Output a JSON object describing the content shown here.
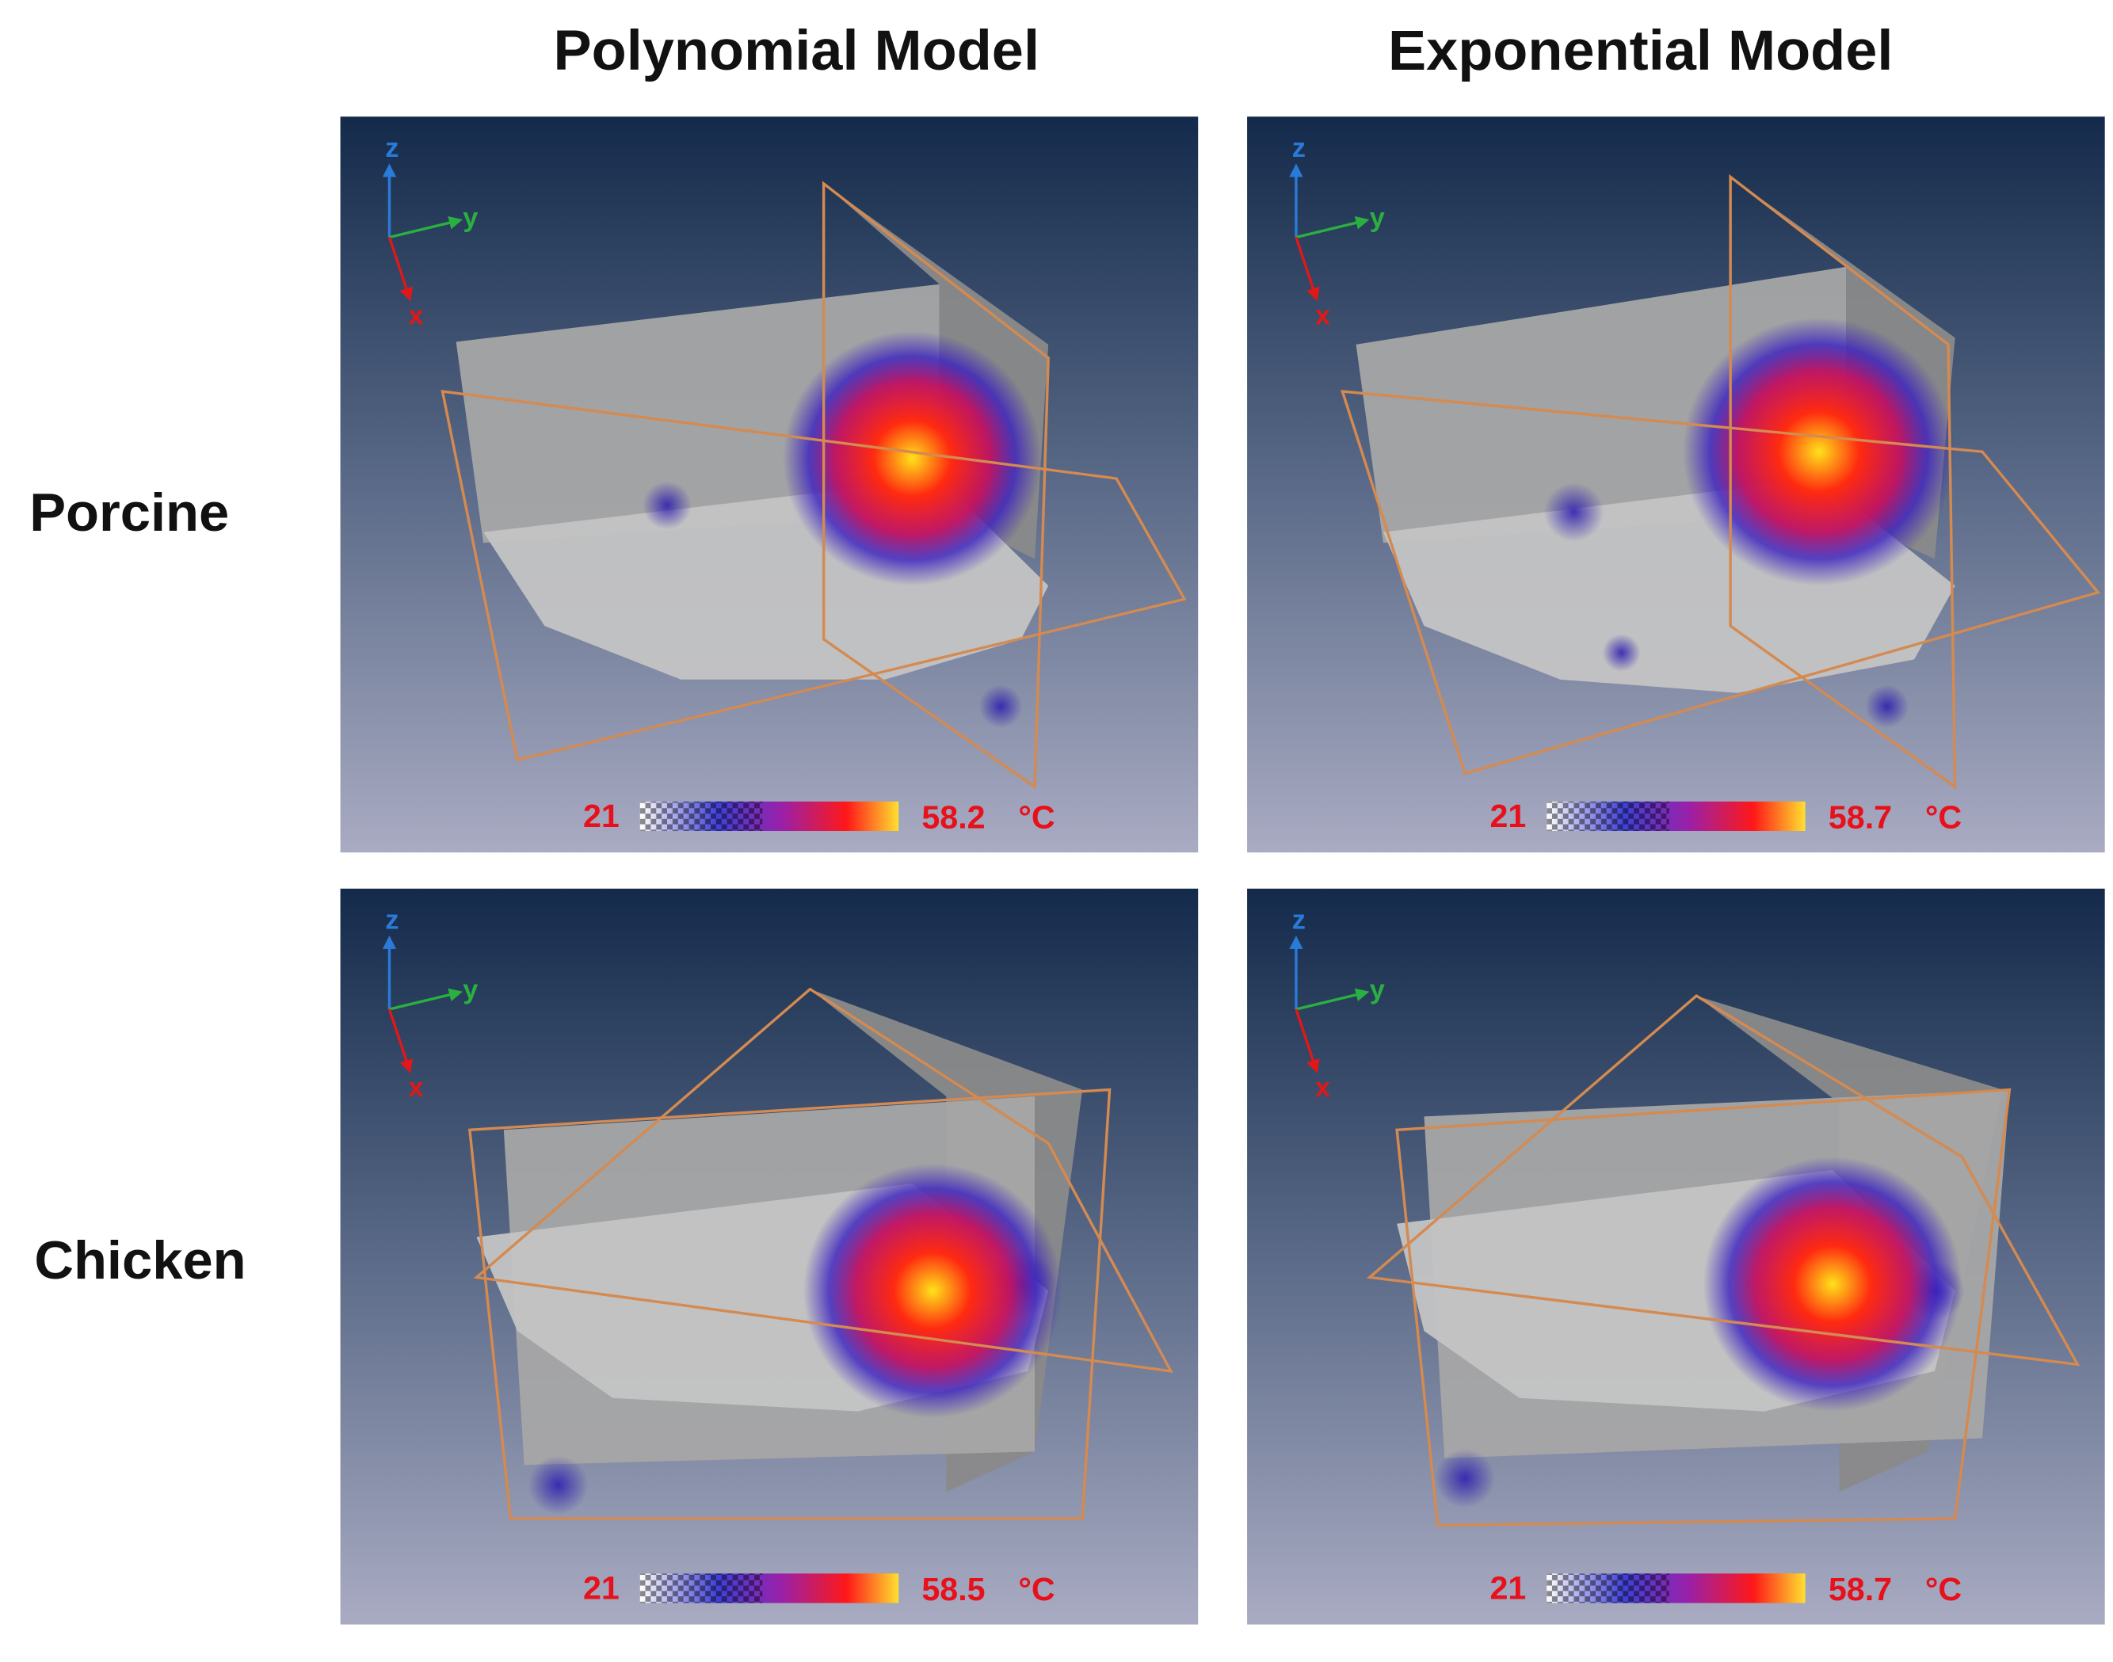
{
  "column_headers": [
    "Polynomial Model",
    "Exponential Model"
  ],
  "row_labels": [
    "Porcine",
    "Chicken"
  ],
  "panels": [
    {
      "axes": [
        "z",
        "y",
        "x"
      ],
      "colorbar": {
        "min": "21",
        "max": "58.2",
        "unit": "°C"
      }
    },
    {
      "axes": [
        "z",
        "y",
        "x"
      ],
      "colorbar": {
        "min": "21",
        "max": "58.7",
        "unit": "°C"
      }
    },
    {
      "axes": [
        "z",
        "y",
        "x"
      ],
      "colorbar": {
        "min": "21",
        "max": "58.5",
        "unit": "°C"
      }
    },
    {
      "axes": [
        "z",
        "y",
        "x"
      ],
      "colorbar": {
        "min": "21",
        "max": "58.7",
        "unit": "°C"
      }
    }
  ]
}
